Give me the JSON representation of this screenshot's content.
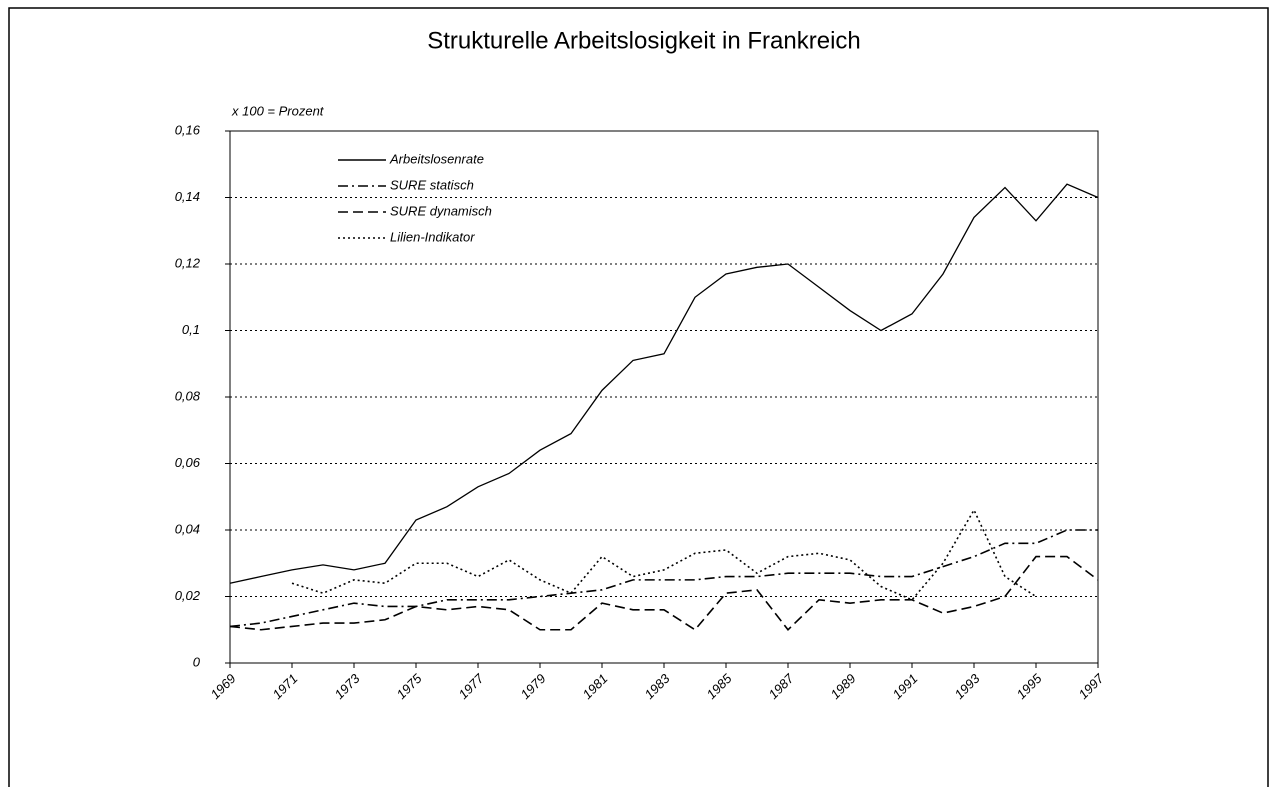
{
  "chart_data": {
    "type": "line",
    "title": "Strukturelle Arbeitslosigkeit in Frankreich",
    "y_label": "x 100 = Prozent",
    "x": [
      1969,
      1970,
      1971,
      1972,
      1973,
      1974,
      1975,
      1976,
      1977,
      1978,
      1979,
      1980,
      1981,
      1982,
      1983,
      1984,
      1985,
      1986,
      1987,
      1988,
      1989,
      1990,
      1991,
      1992,
      1993,
      1994,
      1995,
      1996,
      1997
    ],
    "xlim": [
      1969,
      1997
    ],
    "xticks": [
      1969,
      1971,
      1973,
      1975,
      1977,
      1979,
      1981,
      1983,
      1985,
      1987,
      1989,
      1991,
      1993,
      1995,
      1997
    ],
    "ylim": [
      0,
      0.16
    ],
    "yticks": [
      0,
      {
        "value": 0.02,
        "label": "0,02"
      },
      {
        "value": 0.04,
        "label": "0,04"
      },
      {
        "value": 0.06,
        "label": "0,06"
      },
      {
        "value": 0.08,
        "label": "0,08"
      },
      {
        "value": 0.1,
        "label": "0,1"
      },
      {
        "value": 0.12,
        "label": "0,12"
      },
      {
        "value": 0.14,
        "label": "0,14"
      },
      {
        "value": 0.16,
        "label": "0,16"
      }
    ],
    "grid": true,
    "legend": "top-left",
    "series": [
      {
        "name": "Arbeitslosenrate",
        "color": "#000000",
        "style": "solid",
        "values": [
          0.024,
          0.026,
          0.028,
          0.0295,
          0.028,
          0.03,
          0.043,
          0.047,
          0.053,
          0.057,
          0.064,
          0.069,
          0.082,
          0.091,
          0.093,
          0.11,
          0.117,
          0.119,
          0.12,
          0.113,
          0.106,
          0.1,
          0.105,
          0.117,
          0.134,
          0.143,
          0.133,
          0.144,
          0.14
        ]
      },
      {
        "name": "SURE statisch",
        "color": "#000000",
        "style": "dashdot",
        "values": [
          0.011,
          0.012,
          0.014,
          0.016,
          0.018,
          0.017,
          0.017,
          0.019,
          0.019,
          0.019,
          0.02,
          0.021,
          0.022,
          0.025,
          0.025,
          0.025,
          0.026,
          0.026,
          0.027,
          0.027,
          0.027,
          0.026,
          0.026,
          0.029,
          0.032,
          0.036,
          0.036,
          0.04,
          0.04
        ]
      },
      {
        "name": "SURE dynamisch",
        "color": "#000000",
        "style": "dashed",
        "values": [
          0.011,
          0.01,
          0.011,
          0.012,
          0.012,
          0.013,
          0.017,
          0.016,
          0.017,
          0.016,
          0.01,
          0.01,
          0.018,
          0.016,
          0.016,
          0.01,
          0.021,
          0.022,
          0.01,
          0.019,
          0.018,
          0.019,
          0.019,
          0.015,
          0.017,
          0.02,
          0.032,
          0.032,
          0.025
        ]
      },
      {
        "name": "Lilien-Indikator",
        "color": "#000000",
        "style": "dotted",
        "values": [
          null,
          null,
          0.024,
          0.021,
          0.025,
          0.024,
          0.03,
          0.03,
          0.026,
          0.031,
          0.025,
          0.021,
          0.032,
          0.026,
          0.028,
          0.033,
          0.034,
          0.027,
          0.032,
          0.033,
          0.031,
          0.023,
          0.019,
          0.03,
          0.046,
          0.026,
          0.02,
          null,
          null
        ]
      }
    ]
  }
}
